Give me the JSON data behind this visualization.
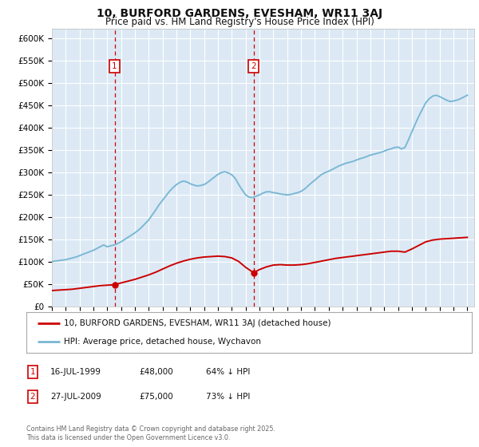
{
  "title": "10, BURFORD GARDENS, EVESHAM, WR11 3AJ",
  "subtitle": "Price paid vs. HM Land Registry's House Price Index (HPI)",
  "background_color": "#dce9f5",
  "plot_bg_color": "#dce9f5",
  "grid_color": "#ffffff",
  "hpi_color": "#7ab8d4",
  "price_color": "#cc0000",
  "vline_color": "#cc0000",
  "legend_label_price": "10, BURFORD GARDENS, EVESHAM, WR11 3AJ (detached house)",
  "legend_label_hpi": "HPI: Average price, detached house, Wychavon",
  "footnote": "Contains HM Land Registry data © Crown copyright and database right 2025.\nThis data is licensed under the Open Government Licence v3.0.",
  "sale1_date": 1999.54,
  "sale1_price": 48000,
  "sale1_label": "1",
  "sale1_date_str": "16-JUL-1999",
  "sale1_price_str": "£48,000",
  "sale1_hpi_str": "64% ↓ HPI",
  "sale2_date": 2009.57,
  "sale2_price": 75000,
  "sale2_label": "2",
  "sale2_date_str": "27-JUL-2009",
  "sale2_price_str": "£75,000",
  "sale2_hpi_str": "73% ↓ HPI",
  "xmin": 1995,
  "xmax": 2025.5,
  "ymin": 0,
  "ymax": 620000,
  "yticks": [
    0,
    50000,
    100000,
    150000,
    200000,
    250000,
    300000,
    350000,
    400000,
    450000,
    500000,
    550000,
    600000
  ],
  "ytick_labels": [
    "£0",
    "£50K",
    "£100K",
    "£150K",
    "£200K",
    "£250K",
    "£300K",
    "£350K",
    "£400K",
    "£450K",
    "£500K",
    "£550K",
    "£600K"
  ],
  "hpi_x": [
    1995.0,
    1995.25,
    1995.5,
    1995.75,
    1996.0,
    1996.25,
    1996.5,
    1996.75,
    1997.0,
    1997.25,
    1997.5,
    1997.75,
    1998.0,
    1998.25,
    1998.5,
    1998.75,
    1999.0,
    1999.25,
    1999.5,
    1999.75,
    2000.0,
    2000.25,
    2000.5,
    2000.75,
    2001.0,
    2001.25,
    2001.5,
    2001.75,
    2002.0,
    2002.25,
    2002.5,
    2002.75,
    2003.0,
    2003.25,
    2003.5,
    2003.75,
    2004.0,
    2004.25,
    2004.5,
    2004.75,
    2005.0,
    2005.25,
    2005.5,
    2005.75,
    2006.0,
    2006.25,
    2006.5,
    2006.75,
    2007.0,
    2007.25,
    2007.5,
    2007.75,
    2008.0,
    2008.25,
    2008.5,
    2008.75,
    2009.0,
    2009.25,
    2009.5,
    2009.75,
    2010.0,
    2010.25,
    2010.5,
    2010.75,
    2011.0,
    2011.25,
    2011.5,
    2011.75,
    2012.0,
    2012.25,
    2012.5,
    2012.75,
    2013.0,
    2013.25,
    2013.5,
    2013.75,
    2014.0,
    2014.25,
    2014.5,
    2014.75,
    2015.0,
    2015.25,
    2015.5,
    2015.75,
    2016.0,
    2016.25,
    2016.5,
    2016.75,
    2017.0,
    2017.25,
    2017.5,
    2017.75,
    2018.0,
    2018.25,
    2018.5,
    2018.75,
    2019.0,
    2019.25,
    2019.5,
    2019.75,
    2020.0,
    2020.25,
    2020.5,
    2020.75,
    2021.0,
    2021.25,
    2021.5,
    2021.75,
    2022.0,
    2022.25,
    2022.5,
    2022.75,
    2023.0,
    2023.25,
    2023.5,
    2023.75,
    2024.0,
    2024.25,
    2024.5,
    2024.75,
    2025.0
  ],
  "hpi_y": [
    100000,
    101000,
    102000,
    103000,
    104000,
    106000,
    108000,
    110000,
    113000,
    116000,
    119000,
    122000,
    125000,
    129000,
    133000,
    137000,
    133000,
    135000,
    137000,
    140000,
    144000,
    149000,
    154000,
    159000,
    164000,
    170000,
    177000,
    185000,
    193000,
    204000,
    215000,
    227000,
    237000,
    247000,
    257000,
    265000,
    272000,
    277000,
    280000,
    278000,
    274000,
    271000,
    269000,
    270000,
    272000,
    277000,
    283000,
    289000,
    295000,
    299000,
    301000,
    298000,
    294000,
    286000,
    272000,
    260000,
    249000,
    244000,
    243000,
    246000,
    249000,
    253000,
    256000,
    256000,
    254000,
    253000,
    251000,
    250000,
    249000,
    250000,
    252000,
    254000,
    257000,
    262000,
    269000,
    276000,
    282000,
    289000,
    295000,
    299000,
    302000,
    306000,
    310000,
    314000,
    317000,
    320000,
    322000,
    324000,
    327000,
    330000,
    332000,
    335000,
    338000,
    340000,
    342000,
    344000,
    347000,
    350000,
    352000,
    355000,
    356000,
    352000,
    355000,
    372000,
    390000,
    408000,
    425000,
    440000,
    455000,
    464000,
    470000,
    472000,
    469000,
    465000,
    461000,
    458000,
    459000,
    461000,
    464000,
    468000,
    472000
  ],
  "price_x": [
    1995.0,
    1995.5,
    1996.0,
    1996.5,
    1997.0,
    1997.5,
    1998.0,
    1998.5,
    1999.0,
    1999.54,
    2000.0,
    2000.5,
    2001.0,
    2001.5,
    2002.0,
    2002.5,
    2003.0,
    2003.5,
    2004.0,
    2004.5,
    2005.0,
    2005.5,
    2006.0,
    2006.5,
    2007.0,
    2007.5,
    2008.0,
    2008.5,
    2009.0,
    2009.57,
    2010.0,
    2010.5,
    2011.0,
    2011.5,
    2012.0,
    2012.5,
    2013.0,
    2013.5,
    2014.0,
    2014.5,
    2015.0,
    2015.5,
    2016.0,
    2016.5,
    2017.0,
    2017.5,
    2018.0,
    2018.5,
    2019.0,
    2019.5,
    2020.0,
    2020.5,
    2021.0,
    2021.5,
    2022.0,
    2022.5,
    2023.0,
    2023.5,
    2024.0,
    2024.5,
    2025.0
  ],
  "price_y": [
    35000,
    36000,
    37000,
    38000,
    40000,
    42000,
    44000,
    46000,
    47000,
    48000,
    52000,
    56000,
    60000,
    65000,
    70000,
    76000,
    83000,
    90000,
    96000,
    101000,
    105000,
    108000,
    110000,
    111000,
    112000,
    111000,
    108000,
    100000,
    87000,
    75000,
    82000,
    88000,
    92000,
    93000,
    92000,
    92000,
    93000,
    95000,
    98000,
    101000,
    104000,
    107000,
    109000,
    111000,
    113000,
    115000,
    117000,
    119000,
    121000,
    123000,
    123000,
    121000,
    128000,
    136000,
    144000,
    148000,
    150000,
    151000,
    152000,
    153000,
    154000
  ]
}
